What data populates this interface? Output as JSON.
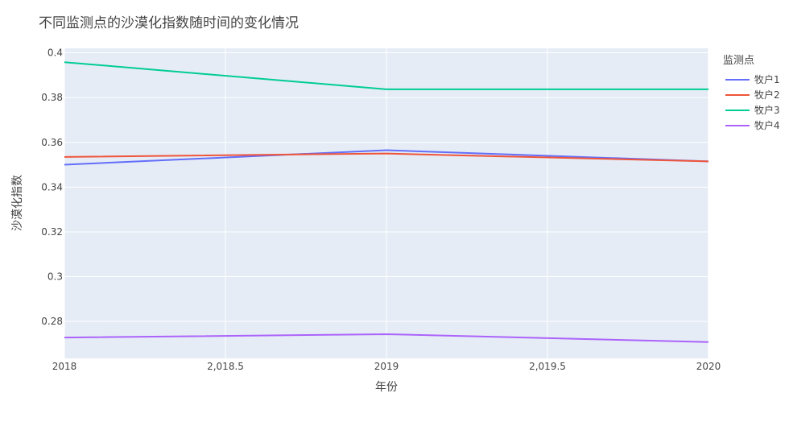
{
  "chart_data": {
    "type": "line",
    "title": "不同监测点的沙漠化指数随时间的变化情况",
    "xlabel": "年份",
    "ylabel": "沙漠化指数",
    "xlim": [
      2018,
      2020
    ],
    "ylim": [
      0.2635,
      0.402
    ],
    "x_ticks": [
      2018,
      2018.5,
      2019,
      2019.5,
      2020
    ],
    "x_tick_labels": [
      "2018",
      "2,018.5",
      "2019",
      "2,019.5",
      "2020"
    ],
    "y_ticks": [
      0.28,
      0.3,
      0.32,
      0.34,
      0.36,
      0.38,
      0.4
    ],
    "y_tick_labels": [
      "0.28",
      "0.3",
      "0.32",
      "0.34",
      "0.36",
      "0.38",
      "0.4"
    ],
    "grid": true,
    "legend_title": "监测点",
    "legend_position": "right",
    "x": [
      2018,
      2019,
      2020
    ],
    "series": [
      {
        "name": "牧户1",
        "color": "#636efa",
        "values": [
          0.35,
          0.3565,
          0.3515
        ]
      },
      {
        "name": "牧户2",
        "color": "#ef553b",
        "values": [
          0.3535,
          0.355,
          0.3515
        ]
      },
      {
        "name": "牧户3",
        "color": "#00cc96",
        "values": [
          0.3958,
          0.3837,
          0.3837
        ]
      },
      {
        "name": "牧户4",
        "color": "#ab63fa",
        "values": [
          0.2728,
          0.2743,
          0.2708
        ]
      }
    ]
  }
}
